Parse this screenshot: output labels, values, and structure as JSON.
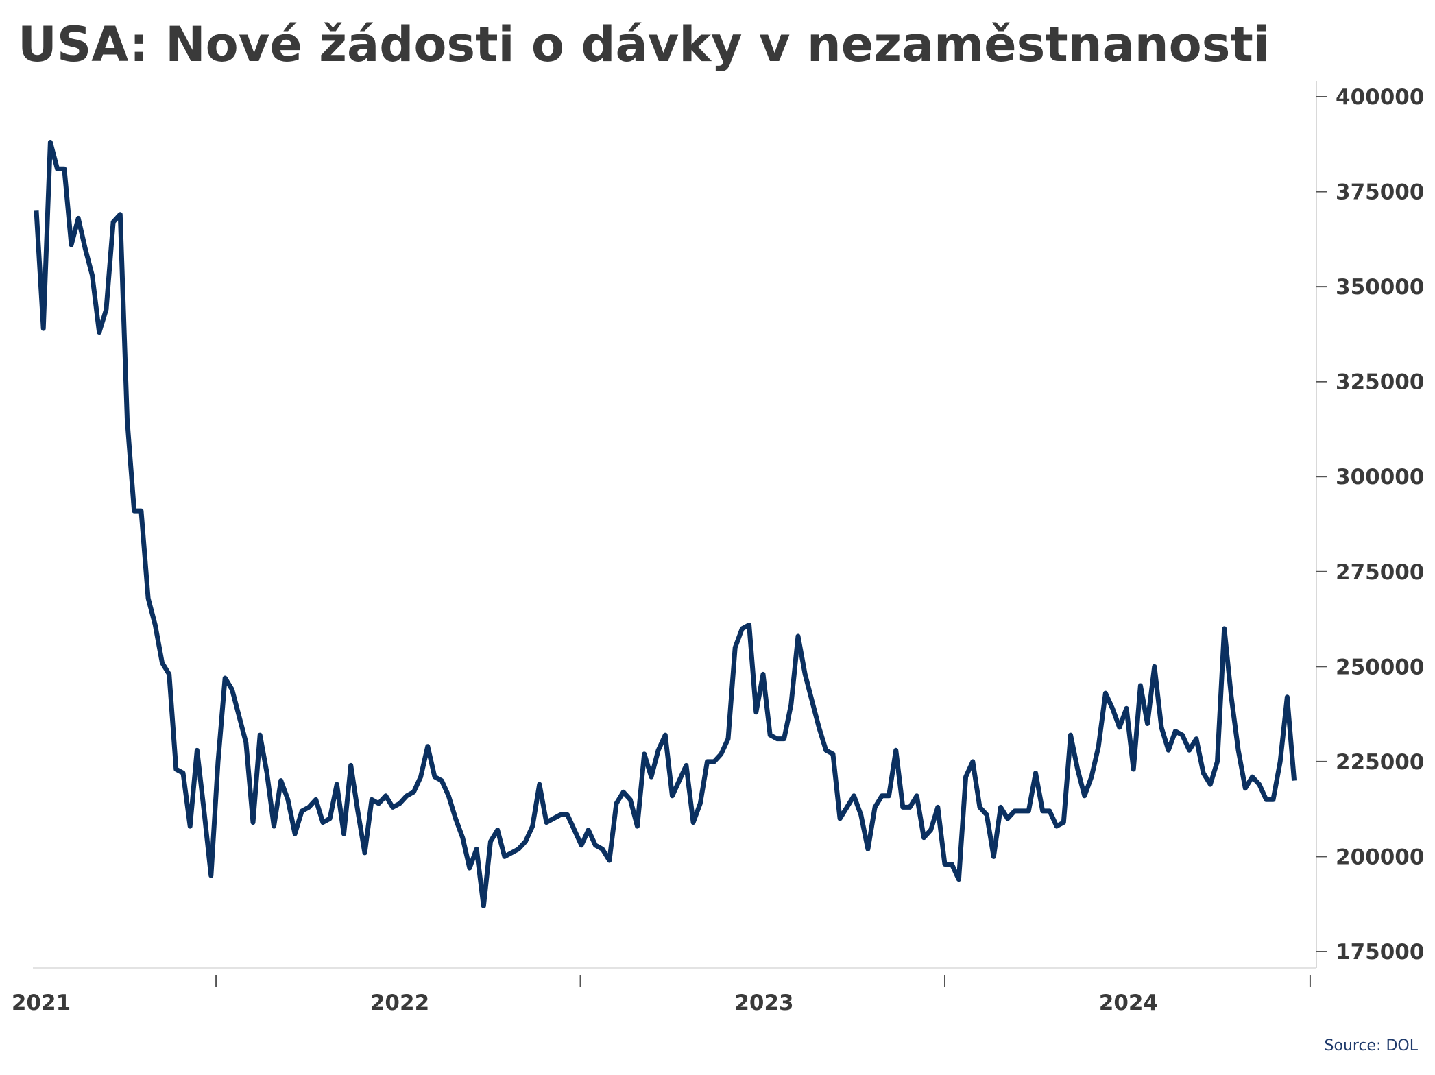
{
  "chart_data": {
    "type": "line",
    "title": "USA: Nové žádosti o dávky v nezaměstnanosti",
    "source": "Source: DOL",
    "line_color": "#0b3060",
    "ylim": [
      170000,
      402000
    ],
    "yticks": [
      175000,
      200000,
      225000,
      250000,
      275000,
      300000,
      325000,
      350000,
      375000,
      400000
    ],
    "ytick_labels": [
      "175000",
      "200000",
      "225000",
      "250000",
      "275000",
      "300000",
      "325000",
      "350000",
      "375000",
      "400000"
    ],
    "xtick_labels": [
      "2021",
      "2022",
      "2023",
      "2024"
    ],
    "x_start": "2021-01-02",
    "x_step_days": 7,
    "grid": false,
    "legend": "none",
    "series": [
      {
        "values": [
          370000,
          339000,
          388000,
          381000,
          381000,
          361000,
          368000,
          360000,
          353000,
          338000,
          344000,
          367000,
          369000,
          315000,
          291000,
          291000,
          268000,
          261000,
          251000,
          248000,
          223000,
          222000,
          208000,
          228000,
          212000,
          195000,
          225000,
          247000,
          244000,
          237000,
          230000,
          209000,
          232000,
          222000,
          208000,
          220000,
          215000,
          206000,
          212000,
          213000,
          215000,
          209000,
          210000,
          219000,
          206000,
          224000,
          212000,
          201000,
          215000,
          214000,
          216000,
          213000,
          214000,
          216000,
          217000,
          221000,
          229000,
          221000,
          220000,
          216000,
          210000,
          205000,
          197000,
          202000,
          187000,
          204000,
          207000,
          200000,
          201000,
          202000,
          204000,
          208000,
          219000,
          209000,
          210000,
          211000,
          211000,
          207000,
          203000,
          207000,
          203000,
          202000,
          199000,
          214000,
          217000,
          215000,
          208000,
          227000,
          221000,
          228000,
          232000,
          216000,
          220000,
          224000,
          209000,
          214000,
          225000,
          225000,
          227000,
          231000,
          255000,
          260000,
          261000,
          238000,
          248000,
          232000,
          231000,
          231000,
          240000,
          258000,
          248000,
          241000,
          234000,
          228000,
          227000,
          210000,
          213000,
          216000,
          211000,
          202000,
          213000,
          216000,
          216000,
          228000,
          213000,
          213000,
          216000,
          205000,
          207000,
          213000,
          198000,
          198000,
          194000,
          221000,
          225000,
          213000,
          211000,
          200000,
          213000,
          210000,
          212000,
          212000,
          212000,
          222000,
          212000,
          212000,
          208000,
          209000,
          232000,
          223000,
          216000,
          221000,
          229000,
          243000,
          239000,
          234000,
          239000,
          223000,
          245000,
          235000,
          250000,
          234000,
          228000,
          233000,
          232000,
          228000,
          231000,
          222000,
          219000,
          225000,
          260000,
          242000,
          228000,
          218000,
          221000,
          219000,
          215000,
          215000,
          225000,
          242000,
          220000
        ]
      }
    ]
  }
}
